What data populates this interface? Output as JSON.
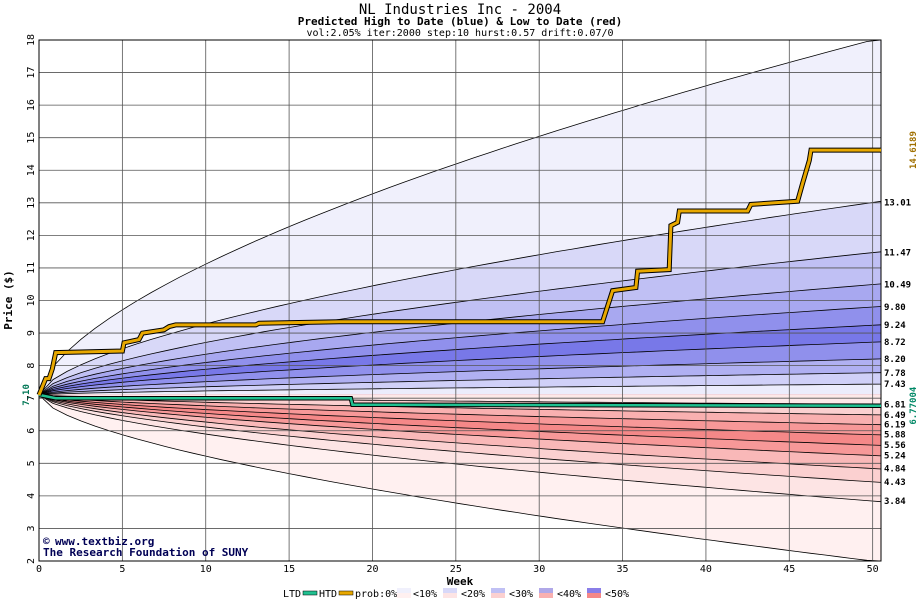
{
  "chart_data": {
    "type": "line",
    "title": "NL Industries Inc - 2004",
    "subtitle": "Predicted High to Date (blue) &  Low to Date (red)",
    "params": "vol:2.05% iter:2000 step:10 hurst:0.57 drift:0.07/0",
    "xlabel": "Week",
    "ylabel": "Price ($)",
    "xlim": [
      0,
      50.5
    ],
    "ylim": [
      2,
      18
    ],
    "x_ticks": [
      0,
      5,
      10,
      15,
      20,
      25,
      30,
      35,
      40,
      45,
      50
    ],
    "y_ticks": [
      2,
      3,
      4,
      5,
      6,
      7,
      8,
      9,
      10,
      11,
      12,
      13,
      14,
      15,
      16,
      17,
      18
    ],
    "grid": true,
    "start_price": 7.1,
    "start_label": "7.10",
    "htd_final_label": "14.6189",
    "ltd_final_label": "6.77004",
    "band_end_labels": [
      "13.01",
      "11.47",
      "10.49",
      "9.80",
      "9.24",
      "8.72",
      "8.20",
      "7.78",
      "7.43",
      "6.81",
      "6.49",
      "6.19",
      "5.88",
      "5.56",
      "5.24",
      "4.84",
      "4.43",
      "3.84"
    ],
    "high_bands": [
      {
        "prob": "0%",
        "end": 18.0,
        "color": "#f0f0fc"
      },
      {
        "prob": "10%",
        "end": 13.01,
        "color": "#d8d8f8"
      },
      {
        "prob": "20%",
        "end": 11.47,
        "color": "#c0c0f4"
      },
      {
        "prob": "30%",
        "end": 10.49,
        "color": "#a8a8f0"
      },
      {
        "prob": "40%",
        "end": 9.8,
        "color": "#9090ec"
      },
      {
        "prob": "50%",
        "end": 9.24,
        "color": "#7878e8"
      },
      {
        "prob": "60%",
        "end": 8.72,
        "color": "#9090ec"
      },
      {
        "prob": "70%",
        "end": 8.2,
        "color": "#b0b0f2"
      },
      {
        "prob": "80%",
        "end": 7.78,
        "color": "#d0d0f8"
      },
      {
        "prob": "90%",
        "end": 7.43,
        "color": "#ececfc"
      }
    ],
    "low_bands": [
      {
        "prob": "90%",
        "end": 6.81,
        "color": "#fde8e8"
      },
      {
        "prob": "80%",
        "end": 6.49,
        "color": "#fbd0d0"
      },
      {
        "prob": "70%",
        "end": 6.19,
        "color": "#f9b0b0"
      },
      {
        "prob": "60%",
        "end": 5.88,
        "color": "#f79898"
      },
      {
        "prob": "50%",
        "end": 5.56,
        "color": "#f58888"
      },
      {
        "prob": "40%",
        "end": 5.24,
        "color": "#f79898"
      },
      {
        "prob": "30%",
        "end": 4.84,
        "color": "#f9b8b8"
      },
      {
        "prob": "20%",
        "end": 4.43,
        "color": "#fbd0d0"
      },
      {
        "prob": "10%",
        "end": 3.84,
        "color": "#fde4e4"
      },
      {
        "prob": "0%",
        "end": 2.0,
        "color": "#fff0f0"
      }
    ],
    "htd_series": {
      "name": "HTD",
      "color": "#e8a800",
      "points": [
        [
          0,
          7.1
        ],
        [
          0.4,
          7.6
        ],
        [
          0.6,
          7.6
        ],
        [
          0.8,
          7.9
        ],
        [
          1.0,
          8.4
        ],
        [
          5.0,
          8.45
        ],
        [
          5.1,
          8.7
        ],
        [
          6.0,
          8.8
        ],
        [
          6.2,
          9.0
        ],
        [
          7.5,
          9.1
        ],
        [
          7.8,
          9.2
        ],
        [
          8.2,
          9.25
        ],
        [
          13,
          9.25
        ],
        [
          13.2,
          9.3
        ],
        [
          18,
          9.35
        ],
        [
          33.8,
          9.35
        ],
        [
          34.4,
          10.3
        ],
        [
          35.8,
          10.4
        ],
        [
          35.9,
          10.9
        ],
        [
          37.8,
          10.95
        ],
        [
          37.9,
          12.3
        ],
        [
          38.3,
          12.4
        ],
        [
          38.4,
          12.75
        ],
        [
          42.5,
          12.75
        ],
        [
          42.7,
          12.95
        ],
        [
          45.5,
          13.05
        ],
        [
          45.8,
          13.6
        ],
        [
          46.2,
          14.3
        ],
        [
          46.3,
          14.62
        ],
        [
          50.5,
          14.62
        ]
      ]
    },
    "ltd_series": {
      "name": "LTD",
      "color": "#20c090",
      "points": [
        [
          0,
          7.1
        ],
        [
          1,
          7.0
        ],
        [
          18.7,
          7.0
        ],
        [
          18.8,
          6.8
        ],
        [
          50.5,
          6.77
        ]
      ]
    }
  },
  "credits": {
    "copyright_symbol": "©",
    "website": "www.textbiz.org",
    "org": "The Research Foundation of SUNY"
  },
  "legend": {
    "ltd": "LTD",
    "htd": "HTD",
    "prob_prefix": "prob:0%",
    "items": [
      "<10%",
      "<20%",
      "<30%",
      "<40%",
      "<50%"
    ],
    "item_colors": [
      "#f0f0fc",
      "#d8d8f8",
      "#c0c0f4",
      "#b0a8e8",
      "#8a7ee8"
    ],
    "item_low_colors": [
      "#fff0f0",
      "#fde4e4",
      "#fbd0d0",
      "#f9b0b0",
      "#f58888"
    ]
  }
}
